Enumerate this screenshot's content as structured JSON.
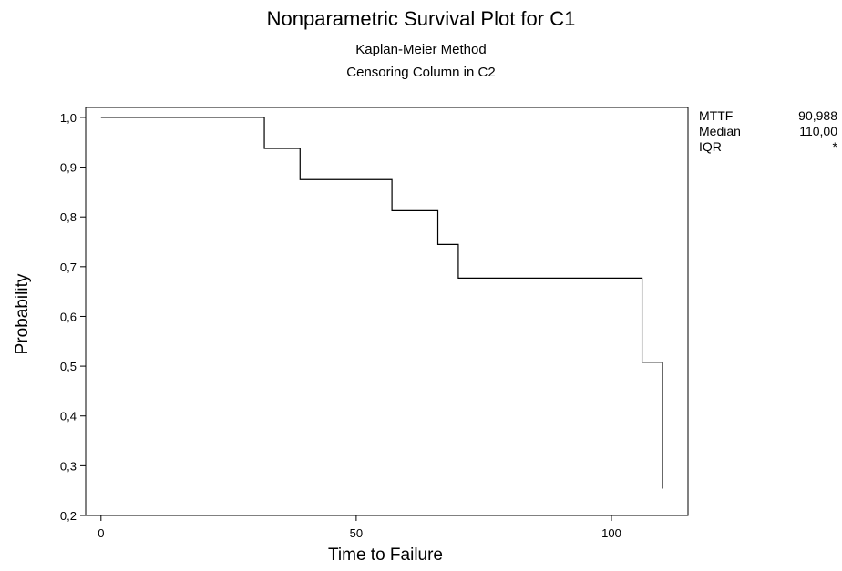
{
  "chart_data": {
    "type": "line",
    "step": true,
    "title": "Nonparametric Survival Plot for C1",
    "subtitle": [
      "Kaplan-Meier Method",
      "Censoring Column in C2"
    ],
    "xlabel": "Time to Failure",
    "ylabel": "Probability",
    "xlim": [
      -3,
      115
    ],
    "ylim": [
      0.2,
      1.02
    ],
    "x_ticks": [
      0,
      50,
      100
    ],
    "x_tick_labels": [
      "0",
      "50",
      "100"
    ],
    "y_ticks": [
      0.2,
      0.3,
      0.4,
      0.5,
      0.6,
      0.7,
      0.8,
      0.9,
      1.0
    ],
    "y_tick_labels": [
      "0,2",
      "0,3",
      "0,4",
      "0,5",
      "0,6",
      "0,7",
      "0,8",
      "0,9",
      "1,0"
    ],
    "grid": false,
    "series": [
      {
        "x": [
          0,
          32,
          39,
          57,
          66,
          70,
          106,
          110
        ],
        "y": [
          1.0,
          0.9375,
          0.875,
          0.8125,
          0.7448,
          0.6771,
          0.5078,
          0.2539
        ],
        "end_x": 110,
        "color": "#000000"
      }
    ]
  },
  "stats": [
    {
      "name": "MTTF",
      "value": "90,988"
    },
    {
      "name": "Median",
      "value": "110,00"
    },
    {
      "name": "IQR",
      "value": "*"
    }
  ]
}
